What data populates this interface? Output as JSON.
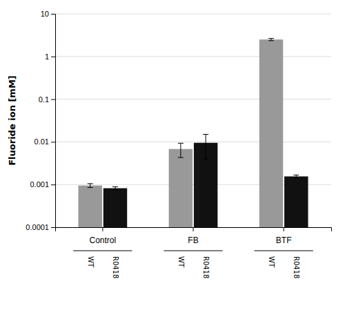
{
  "chart_data": {
    "type": "bar",
    "categories": [
      "Control",
      "FB",
      "BTF"
    ],
    "series": [
      {
        "name": "WT",
        "color": "#999999",
        "values": [
          0.00095,
          0.0068,
          2.5
        ],
        "errors": [
          0.0001,
          0.0025,
          0.15
        ]
      },
      {
        "name": "R0418",
        "color": "#111111",
        "values": [
          0.00082,
          0.0095,
          0.00155
        ],
        "errors": [
          7e-05,
          0.0055,
          0.00012
        ]
      }
    ],
    "ylabel": "Fluoride ion [mM]",
    "ylim": [
      0.0001,
      10
    ],
    "yticks": [
      0.0001,
      0.001,
      0.01,
      0.1,
      1,
      10
    ],
    "log": "y",
    "grid": true
  }
}
